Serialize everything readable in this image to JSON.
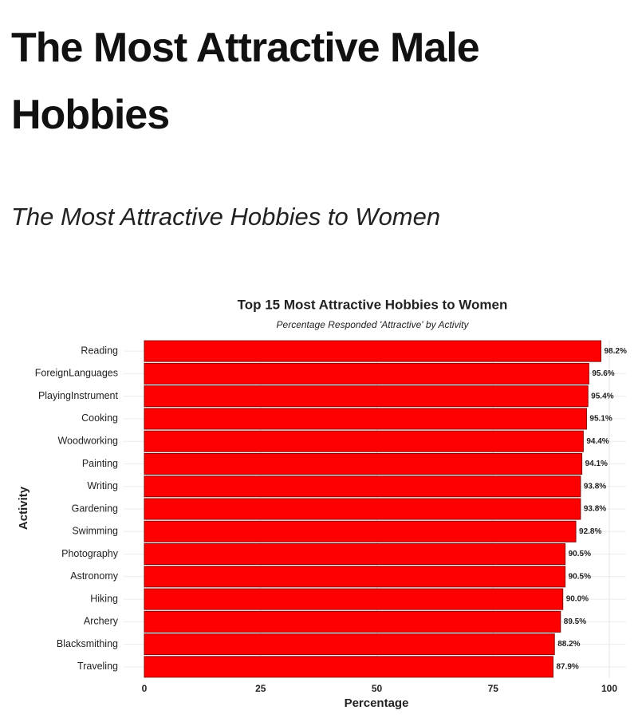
{
  "headline": "The Most Attractive Male Hobbies",
  "subheadline": "The Most Attractive Hobbies to Women",
  "chart_data": {
    "type": "hbar",
    "title": "Top 15 Most Attractive Hobbies to Women",
    "subtitle": "Percentage Responded 'Attractive' by Activity",
    "x_label": "Percentage",
    "y_label": "Activity",
    "categories": [
      "Reading",
      "ForeignLanguages",
      "PlayingInstrument",
      "Cooking",
      "Woodworking",
      "Painting",
      "Writing",
      "Gardening",
      "Swimming",
      "Photography",
      "Astronomy",
      "Hiking",
      "Archery",
      "Blacksmithing",
      "Traveling"
    ],
    "values": [
      98.2,
      95.6,
      95.4,
      95.1,
      94.4,
      94.1,
      93.8,
      93.8,
      92.8,
      90.5,
      90.5,
      90.0,
      89.5,
      88.2,
      87.9
    ],
    "value_labels": [
      "98.2%",
      "95.6%",
      "95.4%",
      "95.1%",
      "94.4%",
      "94.1%",
      "93.8%",
      "93.8%",
      "92.8%",
      "90.5%",
      "90.5%",
      "90.0%",
      "89.5%",
      "88.2%",
      "87.9%"
    ],
    "color": "#ff0000",
    "xlim": [
      0,
      100
    ],
    "xticks": [
      0,
      25,
      50,
      75,
      100
    ],
    "grid": true
  }
}
